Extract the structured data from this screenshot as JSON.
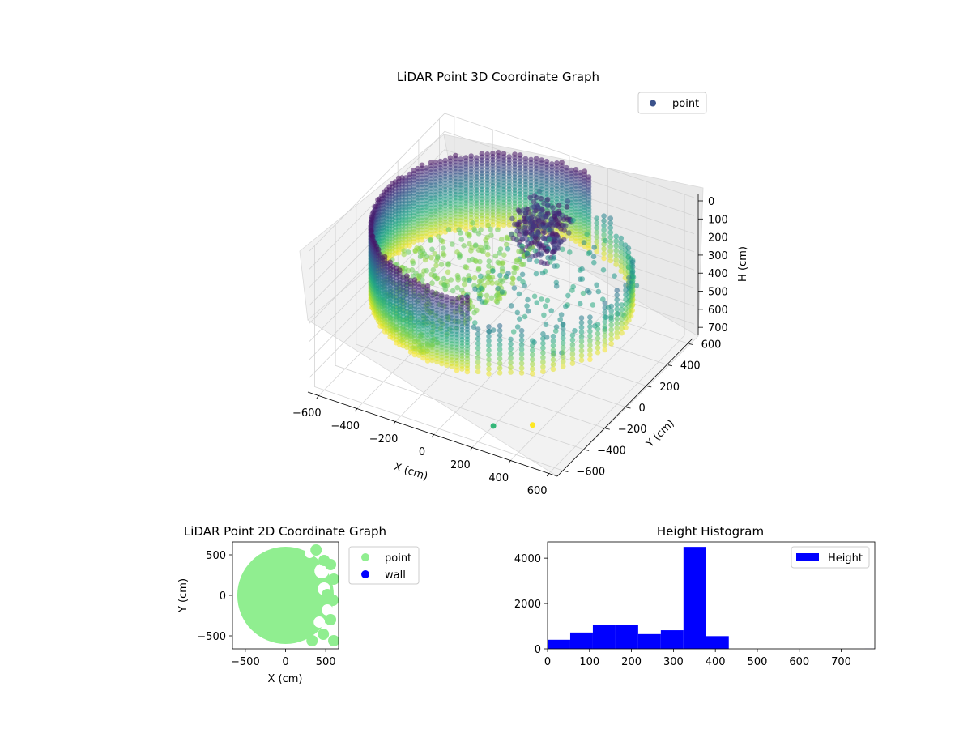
{
  "chart_data": [
    {
      "type": "scatter",
      "dimensions": 3,
      "title": "LiDAR Point 3D Coordinate Graph",
      "xlabel": "X (cm)",
      "ylabel": "Y (cm)",
      "zlabel": "H (cm)",
      "x_ticks": [
        "−600",
        "−400",
        "−200",
        "0",
        "200",
        "400",
        "600"
      ],
      "y_ticks": [
        "−600",
        "−400",
        "−200",
        "0",
        "200",
        "400",
        "600"
      ],
      "z_ticks": [
        "0",
        "100",
        "200",
        "300",
        "400",
        "500",
        "600",
        "700"
      ],
      "xlim": [
        -650,
        650
      ],
      "ylim": [
        -650,
        650
      ],
      "zlim": [
        0,
        780
      ],
      "z_inverted": true,
      "legend": [
        {
          "label": "point",
          "color": "#3b528b"
        }
      ],
      "legend_position": "top-right",
      "colormap": "viridis",
      "series": [
        {
          "name": "point",
          "description": "ring of wall points around the sensor, radius ~600, H 0-400, color by height; dense cluster near x~-100,y~500 at H~300-450; sparse interior points"
        }
      ],
      "outliers": [
        {
          "x": 350,
          "y": -350,
          "h": 780,
          "color": "#fde725"
        },
        {
          "x": 200,
          "y": -450,
          "h": 780,
          "color": "#35b779"
        }
      ],
      "grid": true
    },
    {
      "type": "scatter",
      "title": "LiDAR Point 2D Coordinate Graph",
      "xlabel": "X (cm)",
      "ylabel": "Y (cm)",
      "x_ticks": [
        "−500",
        "0",
        "500"
      ],
      "y_ticks": [
        "−500",
        "0",
        "500"
      ],
      "xlim": [
        -660,
        660
      ],
      "ylim": [
        -660,
        660
      ],
      "legend": [
        {
          "label": "point",
          "color": "#90ee90"
        },
        {
          "label": "wall",
          "color": "#0000ff"
        }
      ],
      "legend_position": "outside-right",
      "series": [
        {
          "name": "point",
          "description": "filled disc of radius ~600 centred at origin, ragged east edge"
        },
        {
          "name": "wall",
          "values": []
        }
      ]
    },
    {
      "type": "bar",
      "title": "Height Histogram",
      "xlabel": "",
      "ylabel": "",
      "x_ticks": [
        "0",
        "100",
        "200",
        "300",
        "400",
        "500",
        "600",
        "700"
      ],
      "y_ticks": [
        "0",
        "2000",
        "4000"
      ],
      "xlim": [
        0,
        780
      ],
      "ylim": [
        0,
        4720
      ],
      "bin_edges": [
        0,
        54,
        108,
        162,
        216,
        270,
        324,
        378,
        432,
        486,
        540,
        594,
        648,
        702,
        756,
        780
      ],
      "values": [
        400,
        720,
        1050,
        1050,
        650,
        820,
        4500,
        560,
        0,
        0,
        0,
        0,
        0,
        0,
        4
      ],
      "color": "#0000ff",
      "legend": [
        {
          "label": "Height",
          "color": "#0000ff"
        }
      ],
      "legend_position": "top-right"
    }
  ]
}
